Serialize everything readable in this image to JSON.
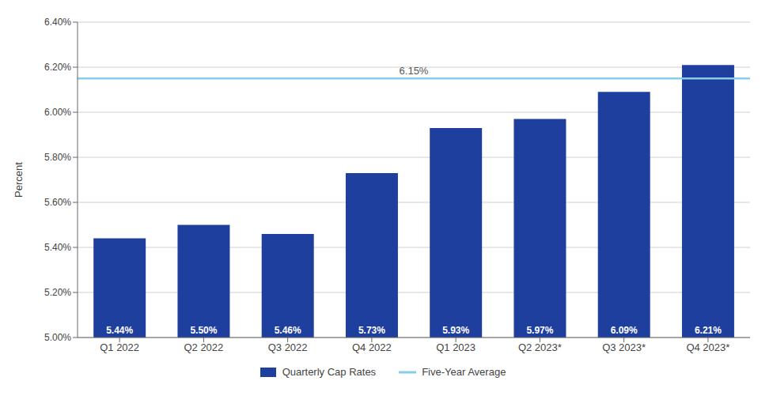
{
  "chart_data": {
    "type": "bar",
    "categories": [
      "Q1 2022",
      "Q2 2022",
      "Q3 2022",
      "Q4 2022",
      "Q1 2023",
      "Q2 2023*",
      "Q3 2023*",
      "Q4 2023*"
    ],
    "series": [
      {
        "name": "Quarterly Cap Rates",
        "color": "#1F3F9F",
        "values": [
          5.44,
          5.5,
          5.46,
          5.73,
          5.93,
          5.97,
          6.09,
          6.21
        ],
        "value_labels": [
          "5.44%",
          "5.50%",
          "5.46%",
          "5.73%",
          "5.93%",
          "5.97%",
          "6.09%",
          "6.21%"
        ]
      }
    ],
    "reference_lines": [
      {
        "name": "Five-Year Average",
        "value": 6.15,
        "label": "6.15%",
        "color": "#87CEEB"
      }
    ],
    "y_label": "Percent",
    "ylim": [
      5.0,
      6.4
    ],
    "yticks": [
      {
        "value": 5.0,
        "label": "5.00%"
      },
      {
        "value": 5.2,
        "label": "5.20%"
      },
      {
        "value": 5.4,
        "label": "5.40%"
      },
      {
        "value": 5.6,
        "label": "5.60%"
      },
      {
        "value": 5.8,
        "label": "5.80%"
      },
      {
        "value": 6.0,
        "label": "6.00%"
      },
      {
        "value": 6.2,
        "label": "6.20%"
      },
      {
        "value": 6.4,
        "label": "6.40%"
      }
    ],
    "grid": true,
    "legend": "bottom",
    "data_labels": true
  }
}
